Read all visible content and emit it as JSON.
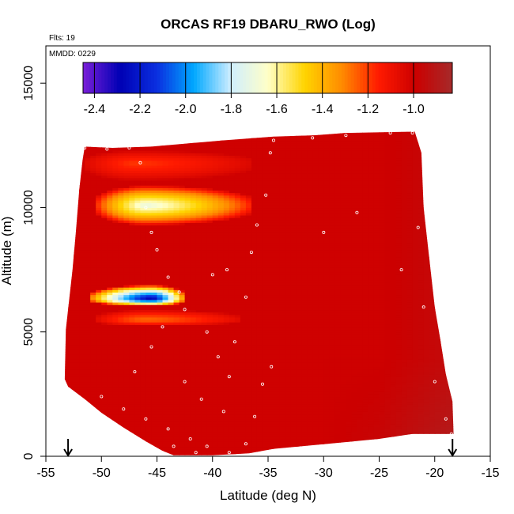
{
  "chart_data": {
    "type": "heatmap",
    "title": "ORCAS RF19 DBARU_RWO (Log)",
    "flights_label": "Flts: 19",
    "date_label": "MMDD: 0229",
    "xlabel": "Latitude (deg N)",
    "ylabel": "Altitude (m)",
    "xlim": [
      -55,
      -15
    ],
    "ylim": [
      0,
      16500
    ],
    "x_ticks": [
      -55,
      -50,
      -45,
      -40,
      -35,
      -30,
      -25,
      -20,
      -15
    ],
    "y_ticks": [
      0,
      5000,
      10000,
      15000
    ],
    "colorbar": {
      "range": [
        -2.45,
        -0.83
      ],
      "ticks": [
        -2.4,
        -2.2,
        -2.0,
        -1.8,
        -1.6,
        -1.4,
        -1.2,
        -1.0
      ],
      "tick_labels": [
        "-2.4",
        "-2.2",
        "-2.0",
        "-1.8",
        "-1.6",
        "-1.4",
        "-1.2",
        "-1.0"
      ],
      "colors": [
        "#7a1fd8",
        "#0000b4",
        "#0a2fe0",
        "#00a8ff",
        "#cfeeff",
        "#ffffc8",
        "#ffd400",
        "#ff8c00",
        "#ff1a00",
        "#cc0000",
        "#a52a2a"
      ]
    },
    "background_value": -1.0,
    "features": [
      {
        "lat_min": -50.5,
        "lat_max": -36.5,
        "alt_min": 9300,
        "alt_max": 10900,
        "peak_lat": -46,
        "peak_alt": 10100,
        "peak_value": -1.72
      },
      {
        "lat_min": -51.5,
        "lat_max": -36.5,
        "alt_min": 11100,
        "alt_max": 12300,
        "peak_lat": -47,
        "peak_alt": 11800,
        "peak_value": -1.2
      },
      {
        "lat_min": -51,
        "lat_max": -42.5,
        "alt_min": 6050,
        "alt_max": 6900,
        "peak_lat": -45.5,
        "peak_alt": 6350,
        "peak_value": -2.3
      },
      {
        "lat_min": -50.5,
        "lat_max": -37.5,
        "alt_min": 5250,
        "alt_max": 5900,
        "peak_lat": -46,
        "peak_alt": 5500,
        "peak_value": -1.28
      }
    ],
    "flight_track": [
      [
        -51.5,
        12400
      ],
      [
        -49.5,
        12350
      ],
      [
        -47.5,
        12400
      ],
      [
        -34.5,
        12700
      ],
      [
        -31,
        12800
      ],
      [
        -28,
        12900
      ],
      [
        -24,
        13000
      ],
      [
        -22,
        13000
      ],
      [
        -46.5,
        11800
      ],
      [
        -46,
        10000
      ],
      [
        -45.5,
        9000
      ],
      [
        -45,
        8300
      ],
      [
        -44,
        7200
      ],
      [
        -43,
        6600
      ],
      [
        -42.5,
        5900
      ],
      [
        -44.5,
        5200
      ],
      [
        -45.5,
        4400
      ],
      [
        -47,
        3400
      ],
      [
        -50,
        2400
      ],
      [
        -48,
        1900
      ],
      [
        -46,
        1500
      ],
      [
        -44,
        1100
      ],
      [
        -42,
        700
      ],
      [
        -40.5,
        400
      ],
      [
        -39,
        1800
      ],
      [
        -38.5,
        3200
      ],
      [
        -38,
        4600
      ],
      [
        -37,
        6400
      ],
      [
        -36.5,
        8200
      ],
      [
        -36,
        9300
      ],
      [
        -35.2,
        10500
      ],
      [
        -34.8,
        12200
      ],
      [
        -37,
        500
      ],
      [
        -36.2,
        1600
      ],
      [
        -35.5,
        2900
      ],
      [
        -34.7,
        3600
      ],
      [
        -30,
        9000
      ],
      [
        -27,
        9800
      ],
      [
        -23,
        7500
      ],
      [
        -21.5,
        9200
      ],
      [
        -21,
        6000
      ],
      [
        -20,
        3000
      ],
      [
        -19,
        1500
      ],
      [
        -18.5,
        900
      ],
      [
        -42.5,
        3000
      ],
      [
        -41,
        2300
      ],
      [
        -43.5,
        400
      ],
      [
        -44.5,
        150
      ],
      [
        -41.5,
        150
      ],
      [
        -38.5,
        150
      ],
      [
        -40,
        7300
      ],
      [
        -40.5,
        5000
      ],
      [
        -38.7,
        7500
      ],
      [
        -39.5,
        4000
      ]
    ],
    "arrows_lat": [
      -53,
      -18.4
    ]
  }
}
